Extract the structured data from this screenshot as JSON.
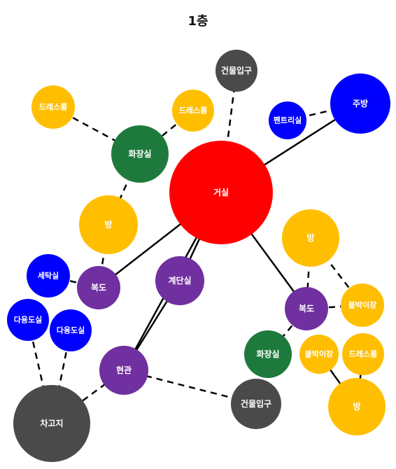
{
  "title": "1층",
  "colors": {
    "living": "#ff0000",
    "room": "#ffbf00",
    "hall": "#7030a0",
    "wet": "#1e7a3c",
    "utility": "#0000ff",
    "entrance": "#4a4a4a",
    "edge": "#000000",
    "label": "#ffffff"
  },
  "nodes": [
    {
      "id": "living",
      "label": "거실",
      "type": "living"
    },
    {
      "id": "entry_top",
      "label": "건물입구",
      "type": "entrance"
    },
    {
      "id": "kitchen",
      "label": "주방",
      "type": "utility"
    },
    {
      "id": "pantry",
      "label": "펜트리실",
      "type": "utility"
    },
    {
      "id": "dress_a",
      "label": "드레스룸",
      "type": "room"
    },
    {
      "id": "dress_b",
      "label": "드레스룸",
      "type": "room"
    },
    {
      "id": "bath_l",
      "label": "화장실",
      "type": "wet"
    },
    {
      "id": "room_l",
      "label": "방",
      "type": "room"
    },
    {
      "id": "laundry",
      "label": "세탁실",
      "type": "utility"
    },
    {
      "id": "hall_l",
      "label": "복도",
      "type": "hall"
    },
    {
      "id": "stairs",
      "label": "계단실",
      "type": "hall"
    },
    {
      "id": "multi_a",
      "label": "다용도실",
      "type": "utility"
    },
    {
      "id": "multi_b",
      "label": "다용도실",
      "type": "utility"
    },
    {
      "id": "foyer",
      "label": "현관",
      "type": "hall"
    },
    {
      "id": "garage",
      "label": "차고지",
      "type": "entrance"
    },
    {
      "id": "entry_bottom",
      "label": "건물입구",
      "type": "entrance"
    },
    {
      "id": "room_r",
      "label": "방",
      "type": "room"
    },
    {
      "id": "hall_r",
      "label": "복도",
      "type": "hall"
    },
    {
      "id": "closet_a",
      "label": "붙박이장",
      "type": "room"
    },
    {
      "id": "bath_r",
      "label": "화장실",
      "type": "wet"
    },
    {
      "id": "closet_b",
      "label": "붙박이장",
      "type": "room"
    },
    {
      "id": "dress_c",
      "label": "드레스룸",
      "type": "room"
    },
    {
      "id": "room_br",
      "label": "방",
      "type": "room"
    }
  ],
  "edges": [
    {
      "from": "living",
      "to": "entry_top",
      "style": "dashed"
    },
    {
      "from": "living",
      "to": "kitchen",
      "style": "solid"
    },
    {
      "from": "pantry",
      "to": "kitchen",
      "style": "dashed"
    },
    {
      "from": "living",
      "to": "hall_l",
      "style": "solid"
    },
    {
      "from": "living",
      "to": "stairs",
      "style": "solid"
    },
    {
      "from": "living",
      "to": "hall_r",
      "style": "solid"
    },
    {
      "from": "dress_a",
      "to": "bath_l",
      "style": "dashed"
    },
    {
      "from": "dress_b",
      "to": "bath_l",
      "style": "dashed"
    },
    {
      "from": "bath_l",
      "to": "room_l",
      "style": "dashed"
    },
    {
      "from": "room_l",
      "to": "hall_l",
      "style": "dashed"
    },
    {
      "from": "laundry",
      "to": "hall_l",
      "style": "dashed"
    },
    {
      "from": "stairs",
      "to": "foyer",
      "style": "solid"
    },
    {
      "from": "living",
      "to": "foyer",
      "style": "solid"
    },
    {
      "from": "multi_a",
      "to": "garage",
      "style": "dashed"
    },
    {
      "from": "multi_b",
      "to": "garage",
      "style": "dashed"
    },
    {
      "from": "foyer",
      "to": "garage",
      "style": "dashed"
    },
    {
      "from": "foyer",
      "to": "entry_bottom",
      "style": "dashed"
    },
    {
      "from": "room_r",
      "to": "hall_r",
      "style": "dashed"
    },
    {
      "from": "room_r",
      "to": "closet_a",
      "style": "dashed"
    },
    {
      "from": "hall_r",
      "to": "bath_r",
      "style": "dashed"
    },
    {
      "from": "hall_r",
      "to": "closet_a",
      "style": "dashed"
    },
    {
      "from": "closet_b",
      "to": "room_br",
      "style": "solid"
    },
    {
      "from": "dress_c",
      "to": "room_br",
      "style": "solid"
    }
  ]
}
